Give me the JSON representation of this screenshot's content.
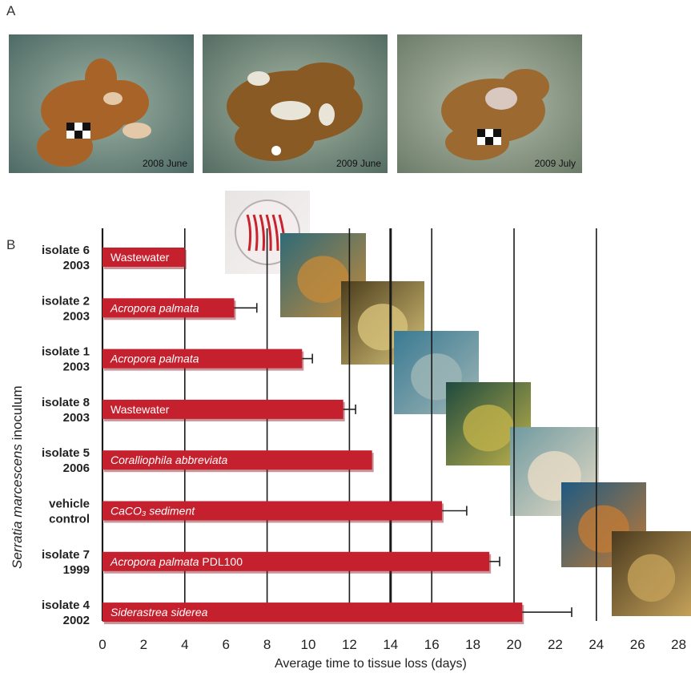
{
  "panel_a": {
    "label": "A",
    "photos": [
      {
        "caption": "2008 June",
        "icon": "coral-photo-icon"
      },
      {
        "caption": "2009 June",
        "icon": "coral-photo-icon"
      },
      {
        "caption": "2009 July",
        "icon": "coral-photo-icon"
      }
    ]
  },
  "panel_b": {
    "label": "B"
  },
  "colors": {
    "bar": "#c5202e",
    "bar_shadow": "#8a1520",
    "grid": "#1a1a1a"
  },
  "chart_data": {
    "type": "bar",
    "orientation": "horizontal",
    "xlabel": "Average time to tissue loss (days)",
    "ylabel_italic": "Serratia marcescens",
    "ylabel_rest": " inoculum",
    "xlim": [
      0,
      28
    ],
    "xticks": [
      "0",
      "2",
      "4",
      "6",
      "8",
      "10",
      "12",
      "14",
      "16",
      "18",
      "20",
      "22",
      "24",
      "26",
      "28"
    ],
    "grid": "vertical at even multiples of 4 days, heavy line at 14",
    "categories": [
      {
        "line1": "isolate 6",
        "line2": "2003",
        "label_italic": "",
        "label_plain": "Wastewater",
        "value": 4.0,
        "error": 0
      },
      {
        "line1": "isolate 2",
        "line2": "2003",
        "label_italic": "Acropora palmata",
        "label_plain": "",
        "value": 6.4,
        "error": 1.1
      },
      {
        "line1": "isolate 1",
        "line2": "2003",
        "label_italic": "Acropora palmata",
        "label_plain": "",
        "value": 9.7,
        "error": 0.5
      },
      {
        "line1": "isolate 8",
        "line2": "2003",
        "label_italic": "",
        "label_plain": "Wastewater",
        "value": 11.7,
        "error": 0.6
      },
      {
        "line1": "isolate 5",
        "line2": "2006",
        "label_italic": "Coralliophila abbreviata",
        "label_plain": "",
        "value": 13.1,
        "error": 0
      },
      {
        "line1": "vehicle",
        "line2": "control",
        "label_italic": "CaCO₃ sediment",
        "label_plain": "",
        "value": 16.5,
        "error": 1.2
      },
      {
        "line1": "isolate 7",
        "line2": "1999",
        "label_italic": "Acropora palmata",
        "label_plain": " PDL100",
        "value": 18.8,
        "error": 0.5
      },
      {
        "line1": "isolate 4",
        "line2": "2002",
        "label_italic": "Siderastrea siderea",
        "label_plain": "",
        "value": 20.4,
        "error": 2.4
      }
    ]
  }
}
